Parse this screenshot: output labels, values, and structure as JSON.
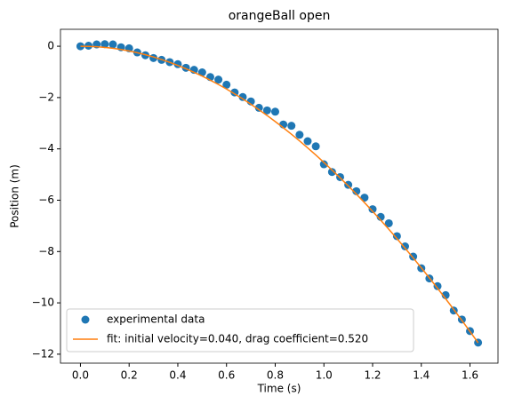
{
  "chart_data": {
    "type": "scatter_fit",
    "title": "orangeBall open",
    "x_label": "Time (s)",
    "y_label": "Position (m)",
    "x": [
      0,
      0.0333,
      0.0667,
      0.1,
      0.1333,
      0.1667,
      0.2,
      0.2333,
      0.2667,
      0.3,
      0.3333,
      0.3667,
      0.4,
      0.4333,
      0.4667,
      0.5,
      0.5333,
      0.5667,
      0.6,
      0.6333,
      0.6667,
      0.7,
      0.7333,
      0.7667,
      0.8,
      0.8333,
      0.8667,
      0.9,
      0.9333,
      0.9667,
      1,
      1.0333,
      1.0667,
      1.1,
      1.1333,
      1.1667,
      1.2,
      1.2333,
      1.2667,
      1.3,
      1.3333,
      1.3667,
      1.4,
      1.4333,
      1.4667,
      1.5,
      1.5333,
      1.5667,
      1.6,
      1.6333
    ],
    "series": [
      {
        "name": "experimental data",
        "kind": "points",
        "color": "#1f77b4",
        "values": [
          0,
          0.02,
          0.07,
          0.08,
          0.07,
          -0.04,
          -0.08,
          -0.24,
          -0.35,
          -0.46,
          -0.53,
          -0.62,
          -0.7,
          -0.84,
          -0.92,
          -1.02,
          -1.2,
          -1.3,
          -1.5,
          -1.8,
          -1.98,
          -2.15,
          -2.4,
          -2.5,
          -2.55,
          -3.05,
          -3.1,
          -3.45,
          -3.7,
          -3.9,
          -4.6,
          -4.9,
          -5.1,
          -5.4,
          -5.65,
          -5.9,
          -6.35,
          -6.65,
          -6.9,
          -7.4,
          -7.8,
          -8.2,
          -8.65,
          -9.05,
          -9.35,
          -9.7,
          -10.3,
          -10.65,
          -11.1,
          -11.55
        ]
      },
      {
        "name": "fit: initial velocity=0.040, drag coefficient=0.520",
        "kind": "line",
        "color": "#ff7f0e",
        "values": [
          0,
          -0.004,
          -0.019,
          -0.045,
          -0.081,
          -0.128,
          -0.185,
          -0.253,
          -0.331,
          -0.42,
          -0.519,
          -0.628,
          -0.747,
          -0.876,
          -1.015,
          -1.163,
          -1.322,
          -1.49,
          -1.668,
          -1.856,
          -2.053,
          -2.259,
          -2.474,
          -2.699,
          -2.934,
          -3.177,
          -3.429,
          -3.69,
          -3.96,
          -4.239,
          -4.527,
          -4.824,
          -5.128,
          -5.442,
          -5.764,
          -6.094,
          -6.433,
          -6.779,
          -7.134,
          -7.497,
          -7.868,
          -8.247,
          -8.634,
          -9.029,
          -9.431,
          -9.841,
          -10.259,
          -10.684,
          -11.116,
          -11.555
        ]
      }
    ],
    "xlim": [
      -0.082,
      1.715
    ],
    "ylim": [
      -12.35,
      0.66
    ],
    "xticks": [
      {
        "value": 0,
        "label": "0.0"
      },
      {
        "value": 0.2,
        "label": "0.2"
      },
      {
        "value": 0.4,
        "label": "0.4"
      },
      {
        "value": 0.6,
        "label": "0.6"
      },
      {
        "value": 0.8,
        "label": "0.8"
      },
      {
        "value": 1,
        "label": "1.0"
      },
      {
        "value": 1.2,
        "label": "1.2"
      },
      {
        "value": 1.4,
        "label": "1.4"
      },
      {
        "value": 1.6,
        "label": "1.6"
      }
    ],
    "yticks": [
      0,
      {
        "value": -2,
        "label": "−2"
      },
      {
        "value": -4,
        "label": "−4"
      },
      {
        "value": -6,
        "label": "−6"
      },
      {
        "value": -8,
        "label": "−8"
      },
      {
        "value": -10,
        "label": "−10"
      },
      {
        "value": -12,
        "label": "−12"
      }
    ],
    "legend": "lower left",
    "grid": false
  }
}
